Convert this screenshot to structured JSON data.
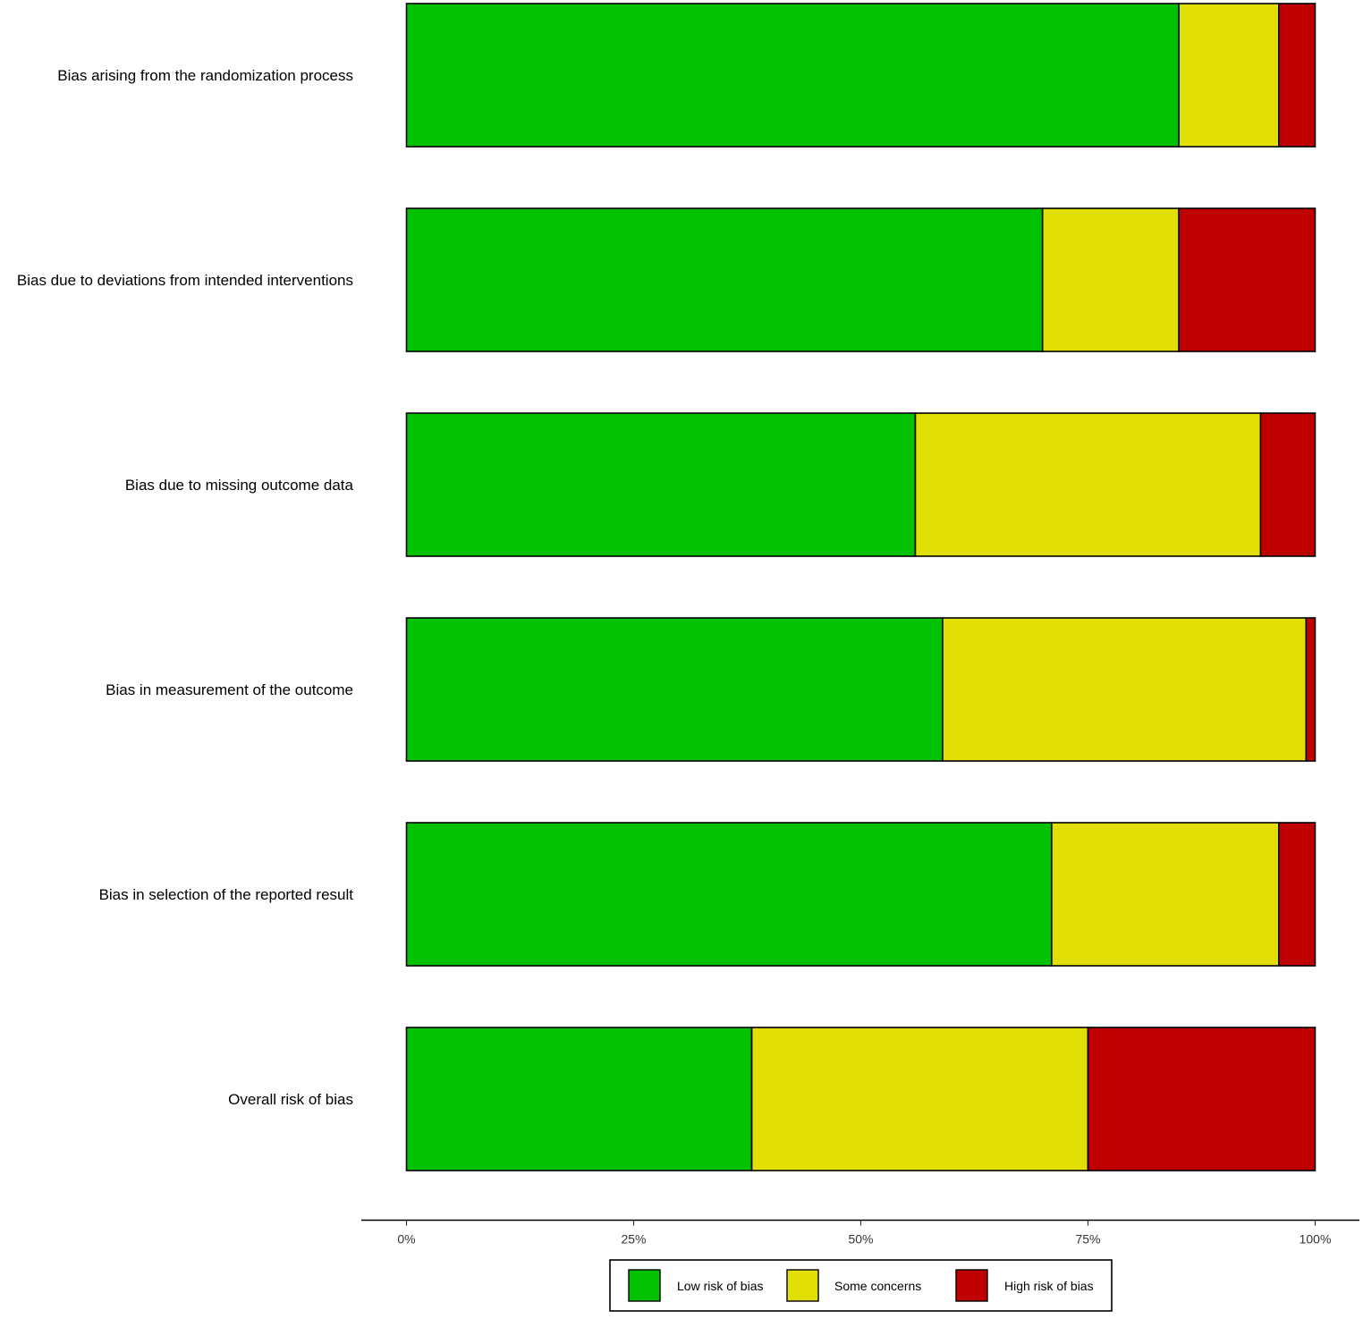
{
  "chart_data": {
    "type": "bar",
    "orientation": "horizontal",
    "stacked": true,
    "categories": [
      "Bias arising from the randomization process",
      "Bias due to deviations from intended interventions",
      "Bias due to missing outcome data",
      "Bias in measurement of the outcome",
      "Bias in selection of the reported result",
      "Overall risk of bias"
    ],
    "series": [
      {
        "name": "Low risk of bias",
        "color": "#02C100",
        "values": [
          85,
          70,
          56,
          59,
          71,
          38
        ]
      },
      {
        "name": "Some concerns",
        "color": "#E2DF07",
        "values": [
          11,
          15,
          38,
          40,
          25,
          37
        ]
      },
      {
        "name": "High risk of bias",
        "color": "#BF0000",
        "values": [
          4,
          15,
          6,
          1,
          4,
          25
        ]
      }
    ],
    "xlim": [
      0,
      100
    ],
    "x_ticks": [
      0,
      25,
      50,
      75,
      100
    ],
    "x_tick_labels": [
      "0%",
      "25%",
      "50%",
      "75%",
      "100%"
    ],
    "title": "",
    "xlabel": "",
    "ylabel": "",
    "grid": false,
    "legend_position": "bottom"
  }
}
